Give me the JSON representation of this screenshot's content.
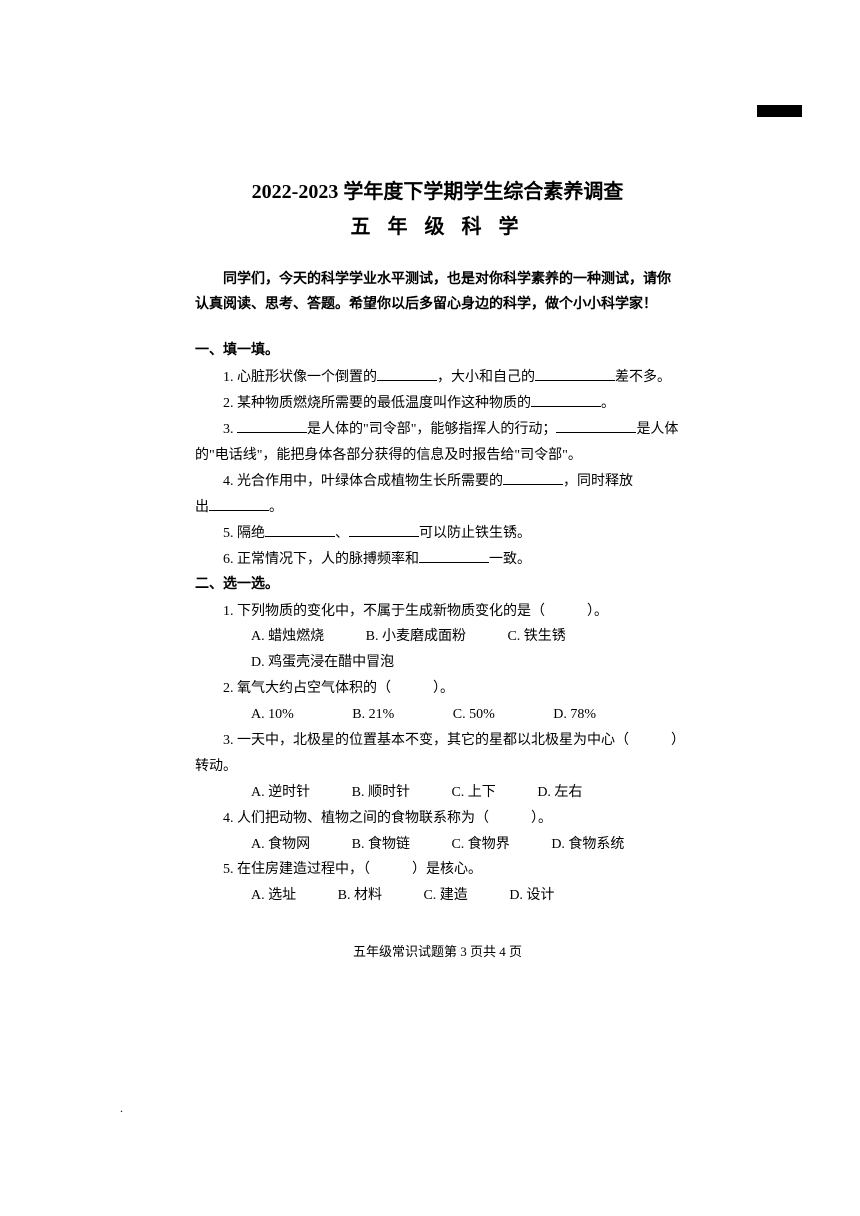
{
  "title_main": "2022-2023 学年度下学期学生综合素养调查",
  "title_sub": "五 年 级 科 学",
  "intro": "同学们，今天的科学学业水平测试，也是对你科学素养的一种测试，请你认真阅读、思考、答题。希望你以后多留心身边的科学，做个小小科学家！",
  "section1": {
    "title": "一、填一填。",
    "q1_a": "1. 心脏形状像一个倒置的",
    "q1_b": "，大小和自己的",
    "q1_c": "差不多。",
    "q2_a": "2. 某种物质燃烧所需要的最低温度叫作这种物质的",
    "q2_b": "。",
    "q3_a": "3. ",
    "q3_b": "是人体的\"司令部\"，能够指挥人的行动；",
    "q3_c": "是人体",
    "q3_d": "的\"电话线\"，能把身体各部分获得的信息及时报告给\"司令部\"。",
    "q4_a": "4. 光合作用中，叶绿体合成植物生长所需要的",
    "q4_b": "，同时释放",
    "q4_c": "出",
    "q4_d": "。",
    "q5_a": "5. 隔绝",
    "q5_b": "、",
    "q5_c": "可以防止铁生锈。",
    "q6_a": "6. 正常情况下，人的脉搏频率和",
    "q6_b": "一致。"
  },
  "section2": {
    "title": "二、选一选。",
    "q1": "1. 下列物质的变化中，不属于生成新物质变化的是（　　　）。",
    "q1_opts": {
      "a": "A. 蜡烛燃烧",
      "b": "B. 小麦磨成面粉",
      "c": "C. 铁生锈",
      "d": "D. 鸡蛋壳浸在醋中冒泡"
    },
    "q2": "2. 氧气大约占空气体积的（　　　）。",
    "q2_opts": {
      "a": "A. 10%",
      "b": "B. 21%",
      "c": "C. 50%",
      "d": "D. 78%"
    },
    "q3_a": "3. 一天中，北极星的位置基本不变，其它的星都以北极星为中心（　　　）",
    "q3_b": "转动。",
    "q3_opts": {
      "a": "A. 逆时针",
      "b": "B. 顺时针",
      "c": "C. 上下",
      "d": "D. 左右"
    },
    "q4": "4. 人们把动物、植物之间的食物联系称为（　　　）。",
    "q4_opts": {
      "a": "A. 食物网",
      "b": "B. 食物链",
      "c": "C. 食物界",
      "d": "D. 食物系统"
    },
    "q5": "5. 在住房建造过程中，（　　　）是核心。",
    "q5_opts": {
      "a": "A. 选址",
      "b": "B. 材料",
      "c": "C. 建造",
      "d": "D. 设计"
    }
  },
  "footer": "五年级常识试题第 3 页共 4 页"
}
